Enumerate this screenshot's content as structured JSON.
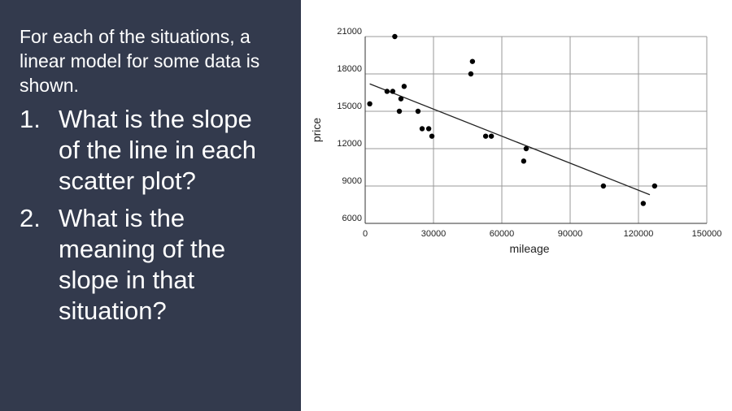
{
  "slide": {
    "intro": "For each of the situations, a linear model for some data is shown.",
    "questions": [
      {
        "marker": "1.",
        "text": "What is the slope of the line in each scatter plot?"
      },
      {
        "marker": "2.",
        "text": "What is the meaning of the slope in that situation?"
      }
    ]
  },
  "chart_data": {
    "type": "scatter",
    "x_label": "mileage",
    "y_label": "price",
    "color": "#000000",
    "grid": true,
    "xlim": [
      0,
      150000
    ],
    "ylim": [
      6000,
      21000
    ],
    "xticks": [
      0,
      30000,
      60000,
      90000,
      120000,
      150000
    ],
    "yticks": [
      6000,
      9000,
      12000,
      15000,
      18000,
      21000
    ],
    "x": [
      2000,
      9600,
      13000,
      12100,
      15000,
      15700,
      17100,
      23200,
      25000,
      27900,
      29300,
      46400,
      47100,
      52900,
      55400,
      69600,
      70700,
      104600,
      122100,
      127100
    ],
    "values": [
      15600,
      16600,
      21000,
      16600,
      15000,
      16000,
      17000,
      15000,
      13600,
      13600,
      13000,
      18000,
      19000,
      13000,
      13000,
      11000,
      12000,
      9000,
      7600,
      9000
    ],
    "trendline": {
      "x": [
        2000,
        125000
      ],
      "values": [
        17200,
        8300
      ]
    }
  }
}
